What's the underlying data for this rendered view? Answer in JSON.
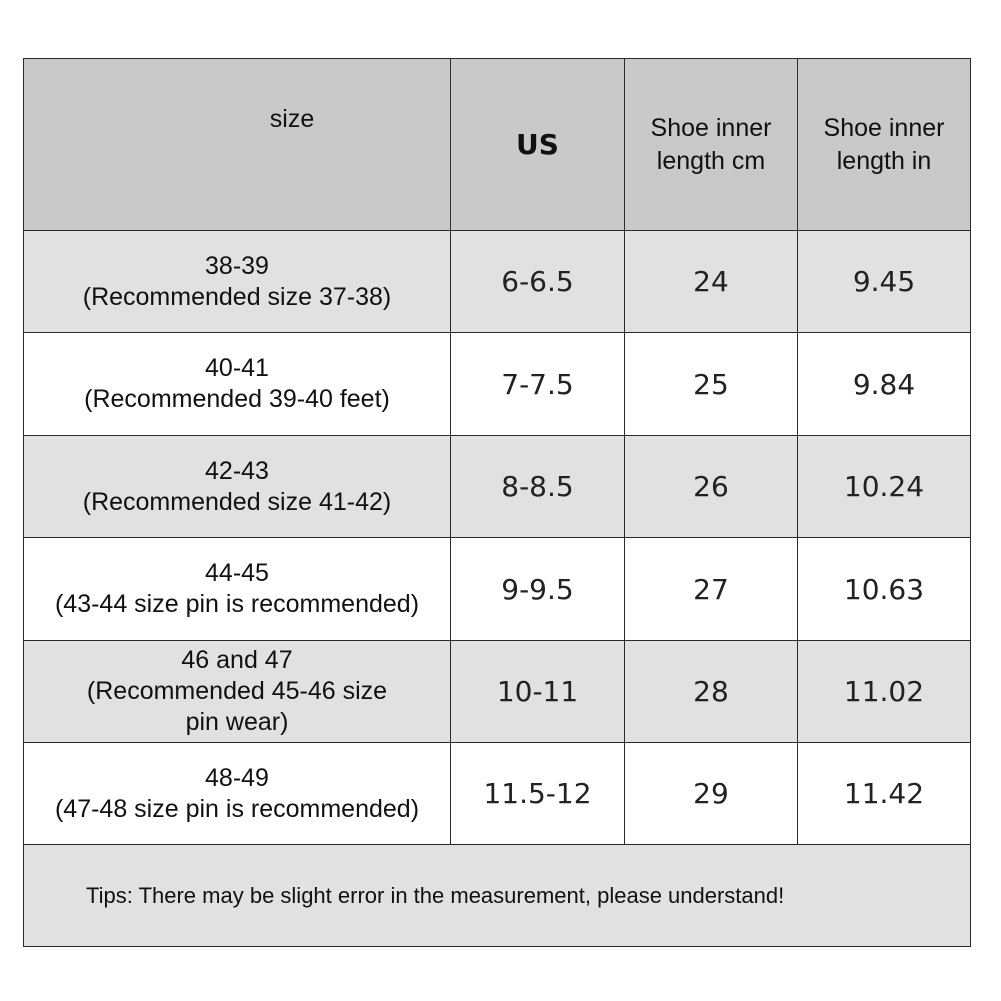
{
  "table": {
    "header": [
      [
        "size"
      ],
      [
        "US"
      ],
      [
        "Shoe inner",
        "length cm"
      ],
      [
        "Shoe inner",
        "length in"
      ]
    ],
    "rows": [
      [
        [
          "38-39",
          "(Recommended size 37-38)"
        ],
        "6-6.5",
        "24",
        "9.45"
      ],
      [
        [
          "40-41",
          "(Recommended 39-40 feet)"
        ],
        "7-7.5",
        "25",
        "9.84"
      ],
      [
        [
          "42-43",
          "(Recommended size 41-42)"
        ],
        "8-8.5",
        "26",
        "10.24"
      ],
      [
        [
          "44-45",
          "(43-44 size pin is recommended)"
        ],
        "9-9.5",
        "27",
        "10.63"
      ],
      [
        [
          "46 and 47",
          "(Recommended 45-46 size",
          "pin wear)"
        ],
        "10-11",
        "28",
        "11.02"
      ],
      [
        [
          "48-49",
          "(47-48 size pin is recommended)"
        ],
        "11.5-12",
        "29",
        "11.42"
      ]
    ],
    "tips": "Tips: There may be slight error in the measurement, please understand!"
  }
}
